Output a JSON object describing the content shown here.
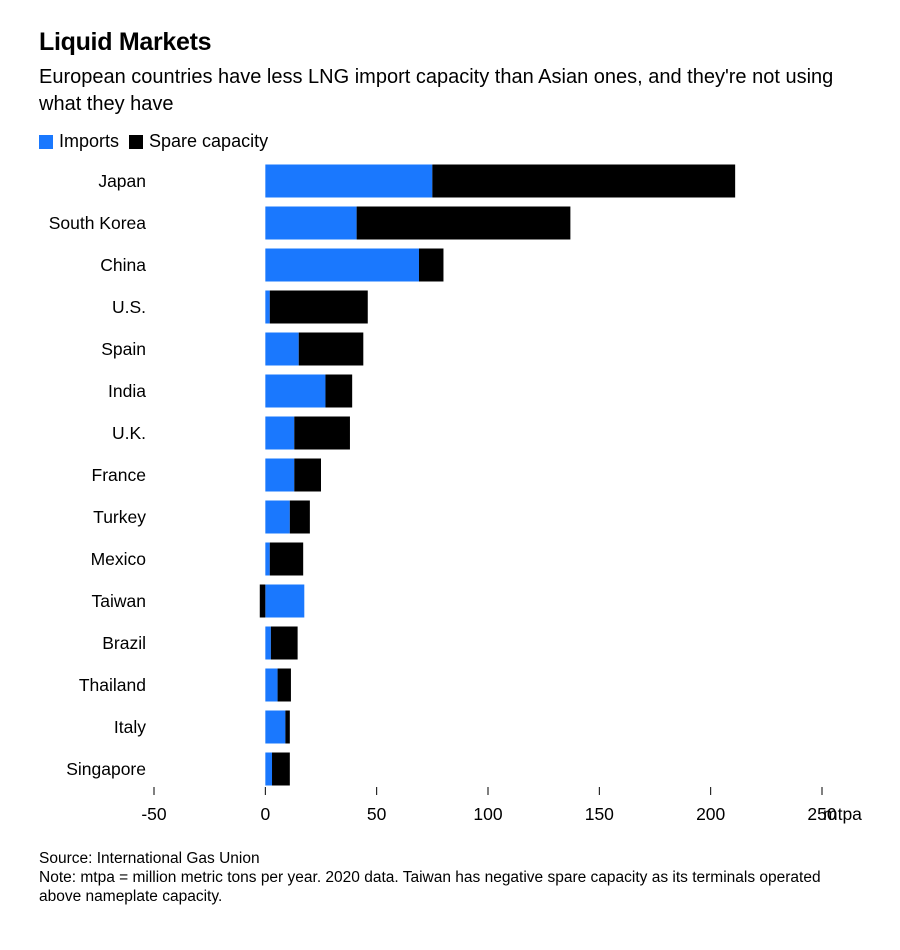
{
  "header": {
    "title": "Liquid Markets",
    "subtitle": "European countries have less LNG import capacity than Asian ones, and they're not using what they have"
  },
  "legend": {
    "imports_label": "Imports",
    "spare_label": "Spare capacity"
  },
  "colors": {
    "imports": "#1a78fe",
    "spare": "#000000",
    "axis_line": "#000000",
    "text": "#000000"
  },
  "chart_data": {
    "type": "bar",
    "orientation": "horizontal",
    "stacked": true,
    "title": "Liquid Markets",
    "subtitle": "European countries have less LNG import capacity than Asian ones, and they're not using what they have",
    "xlabel": "mtpa",
    "ylabel": "",
    "xlim": [
      -50,
      250
    ],
    "x_ticks": [
      -50,
      0,
      50,
      100,
      150,
      200,
      250
    ],
    "x_unit": "mtpa",
    "grid": false,
    "legend_position": "top-left",
    "categories": [
      "Japan",
      "South Korea",
      "China",
      "U.S.",
      "Spain",
      "India",
      "U.K.",
      "France",
      "Turkey",
      "Mexico",
      "Taiwan",
      "Brazil",
      "Thailand",
      "Italy",
      "Singapore"
    ],
    "series": [
      {
        "name": "Imports",
        "values": [
          75,
          41,
          69,
          2,
          15,
          27,
          13,
          13,
          11,
          2,
          17.5,
          2.5,
          5.5,
          9,
          3
        ]
      },
      {
        "name": "Spare capacity",
        "values": [
          136,
          96,
          11,
          44,
          29,
          12,
          25,
          12,
          9,
          15,
          -2.5,
          12,
          6,
          2,
          8
        ]
      }
    ]
  },
  "footer": {
    "source": "Source: International Gas Union",
    "note": "Note: mtpa = million metric tons per year. 2020 data. Taiwan has negative spare capacity as its terminals operated above nameplate capacity."
  }
}
